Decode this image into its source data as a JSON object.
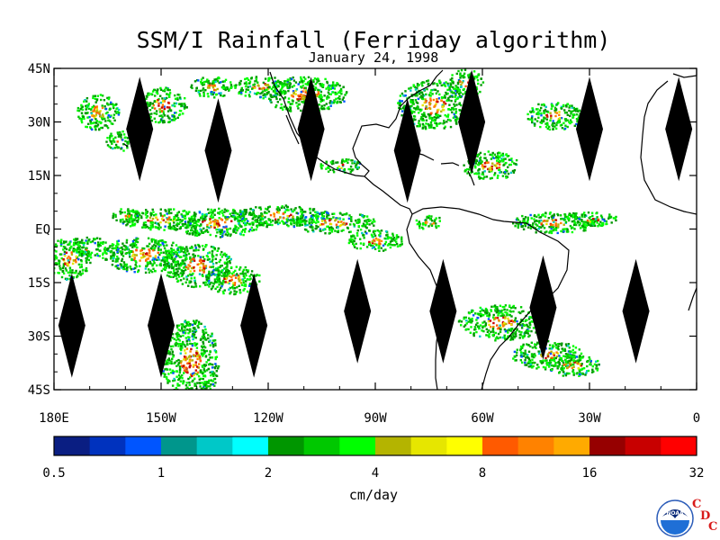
{
  "title": "SSM/I Rainfall (Ferriday algorithm)",
  "subtitle": "January 24, 1998",
  "lat_labels": [
    "45N",
    "30N",
    "15N",
    "EQ",
    "15S",
    "30S",
    "45S"
  ],
  "lat_values": [
    45,
    30,
    15,
    0,
    -15,
    -30,
    -45
  ],
  "lon_labels": [
    "180E",
    "150W",
    "120W",
    "90W",
    "60W",
    "30W",
    "0"
  ],
  "lon_values": [
    -180,
    -150,
    -120,
    -90,
    -60,
    -30,
    0
  ],
  "colorbar": {
    "units": "cm/day",
    "tick_labels": [
      "0.5",
      "1",
      "2",
      "4",
      "8",
      "16",
      "32"
    ],
    "colors": [
      "#0a1e82",
      "#0032be",
      "#0055ff",
      "#00968c",
      "#00c8c8",
      "#00ffff",
      "#009600",
      "#00c800",
      "#00ff00",
      "#b4b400",
      "#e6e600",
      "#ffff00",
      "#ff5a00",
      "#ff8200",
      "#ffaa00",
      "#960000",
      "#c80000",
      "#ff0000"
    ]
  },
  "logo": {
    "text": "NOAA",
    "cdc": [
      "C",
      "D",
      "C"
    ]
  },
  "map": {
    "lon_range": [
      -180,
      0
    ],
    "lat_range": [
      -45,
      45
    ],
    "data_gaps_swaths": [
      [
        -156,
        28
      ],
      [
        -134,
        22
      ],
      [
        -108,
        28
      ],
      [
        -81,
        22
      ],
      [
        -63,
        30
      ],
      [
        -30,
        28
      ],
      [
        -5,
        28
      ],
      [
        -175,
        -27
      ],
      [
        -150,
        -27
      ],
      [
        -124,
        -27
      ],
      [
        -95,
        -23
      ],
      [
        -71,
        -23
      ],
      [
        -43,
        -22
      ],
      [
        -17,
        -23
      ]
    ],
    "rain_regions": [
      [
        -168,
        33,
        6,
        5
      ],
      [
        -150,
        35,
        7,
        5
      ],
      [
        -136,
        40,
        6,
        3
      ],
      [
        -122,
        40,
        8,
        3
      ],
      [
        -110,
        38,
        12,
        5
      ],
      [
        -74,
        35,
        10,
        7
      ],
      [
        -65,
        41,
        5,
        4
      ],
      [
        -40,
        32,
        8,
        4
      ],
      [
        -58,
        18,
        8,
        4
      ],
      [
        -150,
        3,
        12,
        3
      ],
      [
        -134,
        2,
        14,
        4
      ],
      [
        -117,
        4,
        14,
        3
      ],
      [
        -102,
        2,
        12,
        3
      ],
      [
        -160,
        4,
        4,
        2
      ],
      [
        -176,
        -8,
        6,
        6
      ],
      [
        -155,
        -7,
        12,
        5
      ],
      [
        -140,
        -10,
        10,
        6
      ],
      [
        -130,
        -14,
        8,
        4
      ],
      [
        -90,
        -3,
        8,
        3
      ],
      [
        -75,
        2,
        4,
        2
      ],
      [
        -40,
        2,
        12,
        3
      ],
      [
        -30,
        3,
        8,
        2
      ],
      [
        -55,
        -26,
        12,
        5
      ],
      [
        -42,
        -35,
        10,
        4
      ],
      [
        -35,
        -38,
        8,
        3
      ],
      [
        -142,
        -37,
        8,
        12
      ],
      [
        -170,
        -5,
        5,
        3
      ],
      [
        -162,
        25,
        4,
        3
      ],
      [
        -100,
        18,
        6,
        2
      ]
    ]
  }
}
